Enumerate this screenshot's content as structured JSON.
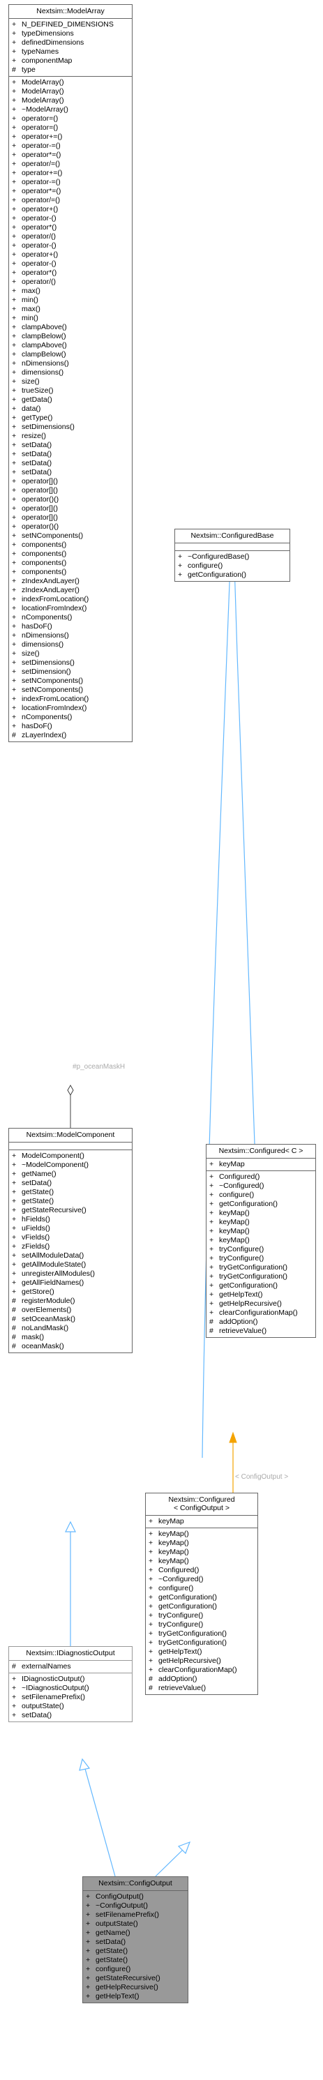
{
  "classes": {
    "model_array": {
      "title": "Nextsim::ModelArray",
      "attributes": [
        {
          "v": "+",
          "t": "N_DEFINED_DIMENSIONS"
        },
        {
          "v": "+",
          "t": "typeDimensions"
        },
        {
          "v": "+",
          "t": "definedDimensions"
        },
        {
          "v": "+",
          "t": "typeNames"
        },
        {
          "v": "+",
          "t": "componentMap"
        },
        {
          "v": "#",
          "t": "type"
        }
      ],
      "methods": [
        {
          "v": "+",
          "t": "ModelArray()"
        },
        {
          "v": "+",
          "t": "ModelArray()"
        },
        {
          "v": "+",
          "t": "ModelArray()"
        },
        {
          "v": "+",
          "t": "~ModelArray()"
        },
        {
          "v": "+",
          "t": "operator=()"
        },
        {
          "v": "+",
          "t": "operator=()"
        },
        {
          "v": "+",
          "t": "operator+=()"
        },
        {
          "v": "+",
          "t": "operator-=()"
        },
        {
          "v": "+",
          "t": "operator*=()"
        },
        {
          "v": "+",
          "t": "operator/=()"
        },
        {
          "v": "+",
          "t": "operator+=()"
        },
        {
          "v": "+",
          "t": "operator-=()"
        },
        {
          "v": "+",
          "t": "operator*=()"
        },
        {
          "v": "+",
          "t": "operator/=()"
        },
        {
          "v": "+",
          "t": "operator+()"
        },
        {
          "v": "+",
          "t": "operator-()"
        },
        {
          "v": "+",
          "t": "operator*()"
        },
        {
          "v": "+",
          "t": "operator/()"
        },
        {
          "v": "+",
          "t": "operator-()"
        },
        {
          "v": "+",
          "t": "operator+()"
        },
        {
          "v": "+",
          "t": "operator-()"
        },
        {
          "v": "+",
          "t": "operator*()"
        },
        {
          "v": "+",
          "t": "operator/()"
        },
        {
          "v": "+",
          "t": "max()"
        },
        {
          "v": "+",
          "t": "min()"
        },
        {
          "v": "+",
          "t": "max()"
        },
        {
          "v": "+",
          "t": "min()"
        },
        {
          "v": "+",
          "t": "clampAbove()"
        },
        {
          "v": "+",
          "t": "clampBelow()"
        },
        {
          "v": "+",
          "t": "clampAbove()"
        },
        {
          "v": "+",
          "t": "clampBelow()"
        },
        {
          "v": "+",
          "t": "nDimensions()"
        },
        {
          "v": "+",
          "t": "dimensions()"
        },
        {
          "v": "+",
          "t": "size()"
        },
        {
          "v": "+",
          "t": "trueSize()"
        },
        {
          "v": "+",
          "t": "getData()"
        },
        {
          "v": "+",
          "t": "data()"
        },
        {
          "v": "+",
          "t": "getType()"
        },
        {
          "v": "+",
          "t": "setDimensions()"
        },
        {
          "v": "+",
          "t": "resize()"
        },
        {
          "v": "+",
          "t": "setData()"
        },
        {
          "v": "+",
          "t": "setData()"
        },
        {
          "v": "+",
          "t": "setData()"
        },
        {
          "v": "+",
          "t": "setData()"
        },
        {
          "v": "+",
          "t": "operator[]()"
        },
        {
          "v": "+",
          "t": "operator[]()"
        },
        {
          "v": "+",
          "t": "operator()()"
        },
        {
          "v": "+",
          "t": "operator[]()"
        },
        {
          "v": "+",
          "t": "operator[]()"
        },
        {
          "v": "+",
          "t": "operator()()"
        },
        {
          "v": "+",
          "t": "setNComponents()"
        },
        {
          "v": "+",
          "t": "components()"
        },
        {
          "v": "+",
          "t": "components()"
        },
        {
          "v": "+",
          "t": "components()"
        },
        {
          "v": "+",
          "t": "components()"
        },
        {
          "v": "+",
          "t": "zIndexAndLayer()"
        },
        {
          "v": "+",
          "t": "zIndexAndLayer()"
        },
        {
          "v": "+",
          "t": "indexFromLocation()"
        },
        {
          "v": "+",
          "t": "locationFromIndex()"
        },
        {
          "v": "+",
          "t": "nComponents()"
        },
        {
          "v": "+",
          "t": "hasDoF()"
        },
        {
          "v": "+",
          "t": "nDimensions()"
        },
        {
          "v": "+",
          "t": "dimensions()"
        },
        {
          "v": "+",
          "t": "size()"
        },
        {
          "v": "+",
          "t": "setDimensions()"
        },
        {
          "v": "+",
          "t": "setDimension()"
        },
        {
          "v": "+",
          "t": "setNComponents()"
        },
        {
          "v": "+",
          "t": "setNComponents()"
        },
        {
          "v": "+",
          "t": "indexFromLocation()"
        },
        {
          "v": "+",
          "t": "locationFromIndex()"
        },
        {
          "v": "+",
          "t": "nComponents()"
        },
        {
          "v": "+",
          "t": "hasDoF()"
        },
        {
          "v": "#",
          "t": "zLayerIndex()"
        }
      ]
    },
    "configured_base": {
      "title": "Nextsim::ConfiguredBase",
      "attributes": [],
      "methods": [
        {
          "v": "+",
          "t": "~ConfiguredBase()"
        },
        {
          "v": "+",
          "t": "configure()"
        },
        {
          "v": "+",
          "t": "getConfiguration()"
        }
      ]
    },
    "model_component": {
      "title": "Nextsim::ModelComponent",
      "attributes": [],
      "methods": [
        {
          "v": "+",
          "t": "ModelComponent()"
        },
        {
          "v": "+",
          "t": "~ModelComponent()"
        },
        {
          "v": "+",
          "t": "getName()"
        },
        {
          "v": "+",
          "t": "setData()"
        },
        {
          "v": "+",
          "t": "getState()"
        },
        {
          "v": "+",
          "t": "getState()"
        },
        {
          "v": "+",
          "t": "getStateRecursive()"
        },
        {
          "v": "+",
          "t": "hFields()"
        },
        {
          "v": "+",
          "t": "uFields()"
        },
        {
          "v": "+",
          "t": "vFields()"
        },
        {
          "v": "+",
          "t": "zFields()"
        },
        {
          "v": "+",
          "t": "setAllModuleData()"
        },
        {
          "v": "+",
          "t": "getAllModuleState()"
        },
        {
          "v": "+",
          "t": "unregisterAllModules()"
        },
        {
          "v": "+",
          "t": "getAllFieldNames()"
        },
        {
          "v": "+",
          "t": "getStore()"
        },
        {
          "v": "#",
          "t": "registerModule()"
        },
        {
          "v": "#",
          "t": "overElements()"
        },
        {
          "v": "#",
          "t": "setOceanMask()"
        },
        {
          "v": "#",
          "t": "noLandMask()"
        },
        {
          "v": "#",
          "t": "mask()"
        },
        {
          "v": "#",
          "t": "oceanMask()"
        }
      ]
    },
    "configured_c": {
      "title": "Nextsim::Configured< C >",
      "attributes": [
        {
          "v": "+",
          "t": "keyMap"
        }
      ],
      "methods": [
        {
          "v": "+",
          "t": "Configured()"
        },
        {
          "v": "+",
          "t": "~Configured()"
        },
        {
          "v": "+",
          "t": "configure()"
        },
        {
          "v": "+",
          "t": "getConfiguration()"
        },
        {
          "v": "+",
          "t": "keyMap()"
        },
        {
          "v": "+",
          "t": "keyMap()"
        },
        {
          "v": "+",
          "t": "keyMap()"
        },
        {
          "v": "+",
          "t": "keyMap()"
        },
        {
          "v": "+",
          "t": "tryConfigure()"
        },
        {
          "v": "+",
          "t": "tryConfigure()"
        },
        {
          "v": "+",
          "t": "tryGetConfiguration()"
        },
        {
          "v": "+",
          "t": "tryGetConfiguration()"
        },
        {
          "v": "+",
          "t": "getConfiguration()"
        },
        {
          "v": "+",
          "t": "getHelpText()"
        },
        {
          "v": "+",
          "t": "getHelpRecursive()"
        },
        {
          "v": "+",
          "t": "clearConfigurationMap()"
        },
        {
          "v": "#",
          "t": "addOption()"
        },
        {
          "v": "#",
          "t": "retrieveValue()"
        }
      ]
    },
    "configured_output": {
      "title": "Nextsim::Configured\n< ConfigOutput >",
      "attributes": [
        {
          "v": "+",
          "t": "keyMap"
        }
      ],
      "methods": [
        {
          "v": "+",
          "t": "keyMap()"
        },
        {
          "v": "+",
          "t": "keyMap()"
        },
        {
          "v": "+",
          "t": "keyMap()"
        },
        {
          "v": "+",
          "t": "keyMap()"
        },
        {
          "v": "+",
          "t": "Configured()"
        },
        {
          "v": "+",
          "t": "~Configured()"
        },
        {
          "v": "+",
          "t": "configure()"
        },
        {
          "v": "+",
          "t": "getConfiguration()"
        },
        {
          "v": "+",
          "t": "getConfiguration()"
        },
        {
          "v": "+",
          "t": "tryConfigure()"
        },
        {
          "v": "+",
          "t": "tryConfigure()"
        },
        {
          "v": "+",
          "t": "tryGetConfiguration()"
        },
        {
          "v": "+",
          "t": "tryGetConfiguration()"
        },
        {
          "v": "+",
          "t": "getHelpText()"
        },
        {
          "v": "+",
          "t": "getHelpRecursive()"
        },
        {
          "v": "+",
          "t": "clearConfigurationMap()"
        },
        {
          "v": "#",
          "t": "addOption()"
        },
        {
          "v": "#",
          "t": "retrieveValue()"
        }
      ]
    },
    "idiagnostic_output": {
      "title": "Nextsim::IDiagnosticOutput",
      "attributes": [
        {
          "v": "#",
          "t": "externalNames"
        }
      ],
      "methods": [
        {
          "v": "+",
          "t": "IDiagnosticOutput()"
        },
        {
          "v": "+",
          "t": "~IDiagnosticOutput()"
        },
        {
          "v": "+",
          "t": "setFilenamePrefix()"
        },
        {
          "v": "+",
          "t": "outputState()"
        },
        {
          "v": "+",
          "t": "setData()"
        }
      ]
    },
    "config_output": {
      "title": "Nextsim::ConfigOutput",
      "attributes": [],
      "methods": [
        {
          "v": "+",
          "t": "ConfigOutput()"
        },
        {
          "v": "+",
          "t": "~ConfigOutput()"
        },
        {
          "v": "+",
          "t": "setFilenamePrefix()"
        },
        {
          "v": "+",
          "t": "outputState()"
        },
        {
          "v": "+",
          "t": "getName()"
        },
        {
          "v": "+",
          "t": "setData()"
        },
        {
          "v": "+",
          "t": "getState()"
        },
        {
          "v": "+",
          "t": "getState()"
        },
        {
          "v": "+",
          "t": "configure()"
        },
        {
          "v": "+",
          "t": "getStateRecursive()"
        },
        {
          "v": "+",
          "t": "getHelpRecursive()"
        },
        {
          "v": "+",
          "t": "getHelpText()"
        }
      ]
    }
  },
  "edge_labels": {
    "ocean_mask": "#p_oceanMaskH",
    "config_output": "< ConfigOutput >"
  },
  "colors": {
    "inheritance": "#63b8ff",
    "template": "#f4a300",
    "composition": "#404040",
    "highlight_fill": "#999999"
  }
}
